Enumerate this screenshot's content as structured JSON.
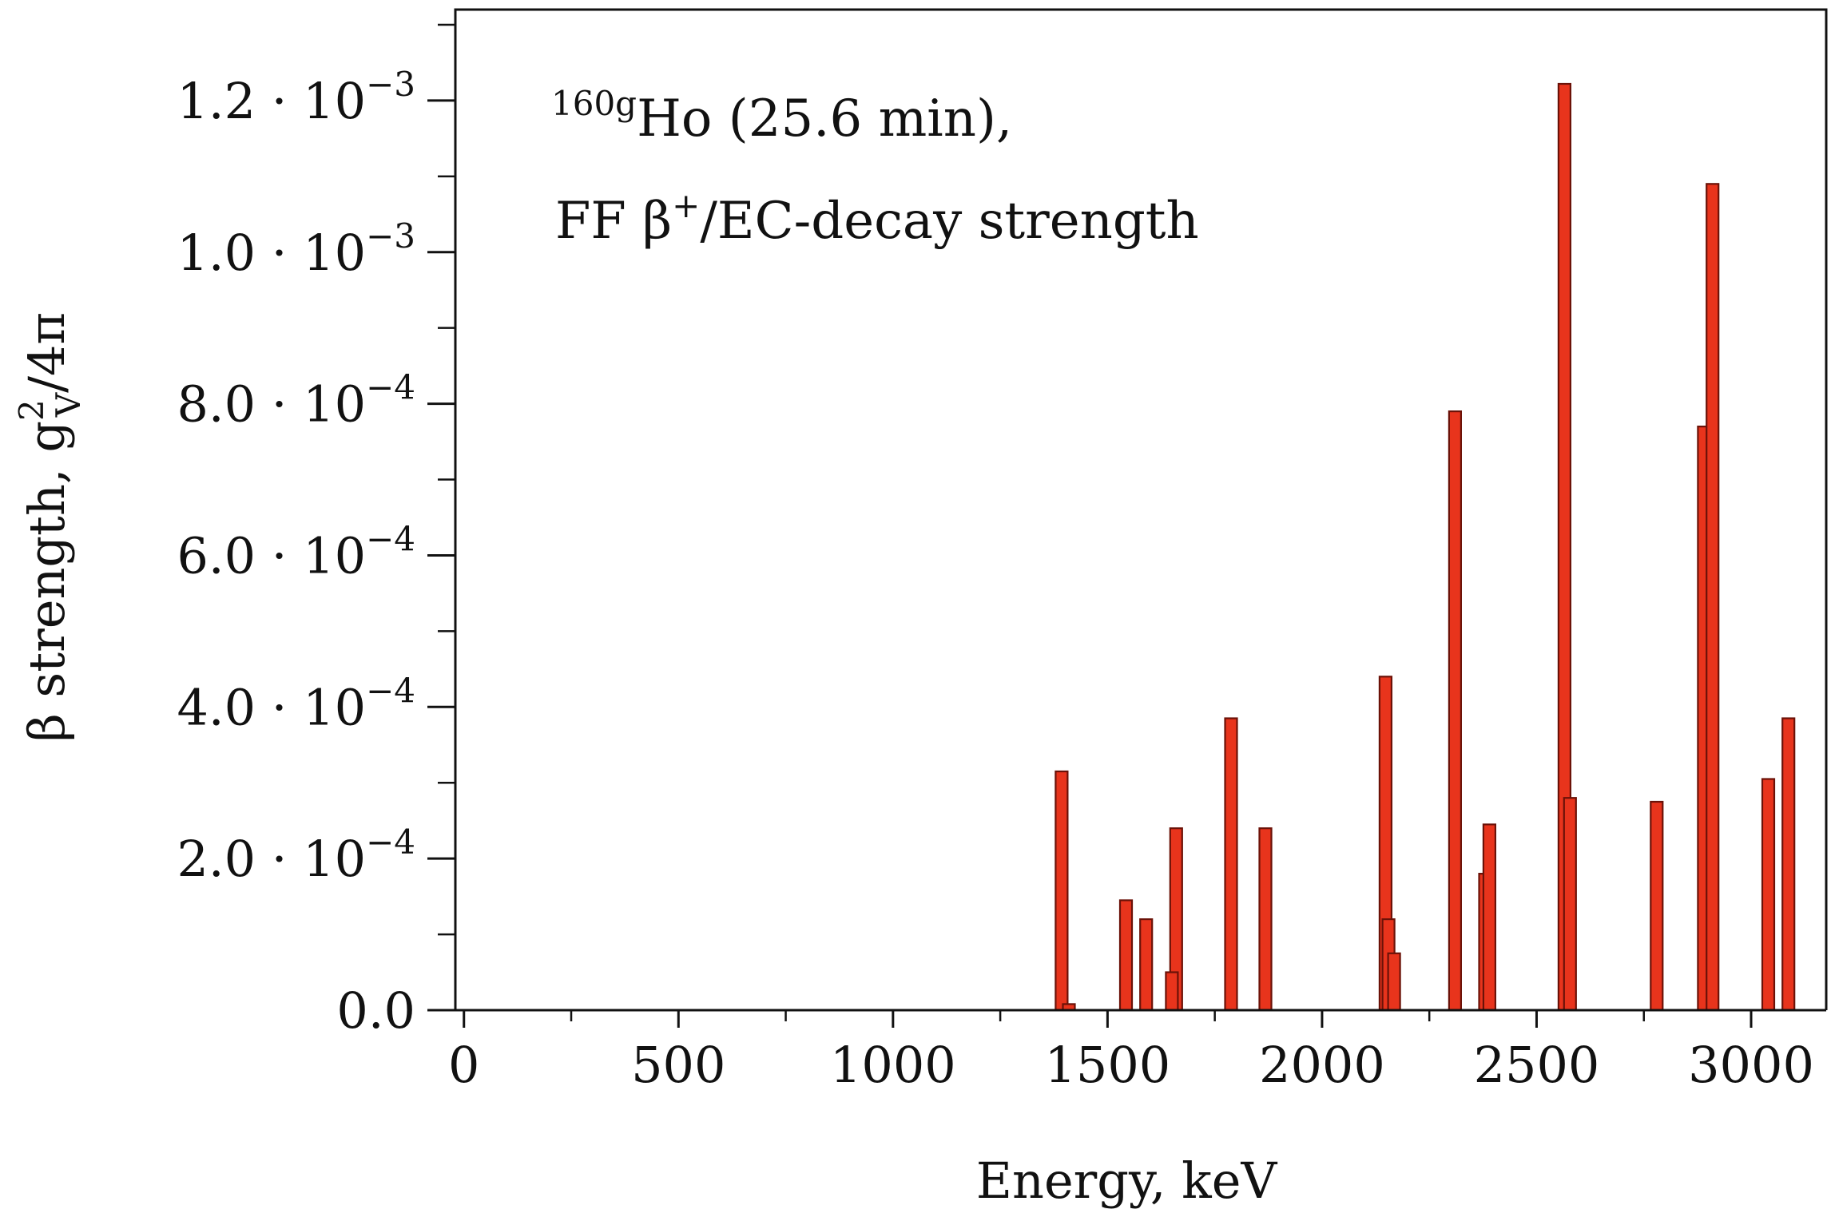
{
  "chart_data": {
    "type": "bar",
    "title": "",
    "annotation": {
      "line1": {
        "mass_sup": "160g",
        "nuclide": "Ho (25.6 min),",
        "text": "¹⁶⁰ᵍHo (25.6 min),"
      },
      "line2": {
        "prefix": "FF β",
        "charge_sup": "+",
        "suffix": "/EC-decay strength",
        "text": "FF β⁺/EC-decay strength"
      }
    },
    "xlabel": "Energy, keV",
    "ylabel": {
      "prefix": "β strength, g",
      "sup": "2",
      "sub": "V",
      "suffix": "/4π",
      "text": "β strength, g²ᵥ/4π"
    },
    "xlim": [
      -20,
      3175
    ],
    "ylim": [
      0,
      0.00132
    ],
    "xticks": [
      0,
      500,
      1000,
      1500,
      2000,
      2500,
      3000
    ],
    "xtick_labels": [
      "0",
      "500",
      "1000",
      "1500",
      "2000",
      "2500",
      "3000"
    ],
    "xminor_ticks": [
      250,
      750,
      1250,
      1750,
      2250,
      2750
    ],
    "yticks": [
      0,
      0.0002,
      0.0004,
      0.0006,
      0.0008,
      0.001,
      0.0012
    ],
    "ytick_labels": [
      {
        "mantissa": "0.0",
        "exp": ""
      },
      {
        "mantissa": "2.0 · 10",
        "exp": "−4"
      },
      {
        "mantissa": "4.0 · 10",
        "exp": "−4"
      },
      {
        "mantissa": "6.0 · 10",
        "exp": "−4"
      },
      {
        "mantissa": "8.0 · 10",
        "exp": "−4"
      },
      {
        "mantissa": "1.0 · 10",
        "exp": "−3"
      },
      {
        "mantissa": "1.2 · 10",
        "exp": "−3"
      }
    ],
    "yminor_step": 0.0001,
    "bar_width": 28,
    "grid": false,
    "legend": "none",
    "colors": {
      "bar_fill": "#e8341c",
      "bar_edge": "#6b1208",
      "axis": "#111111"
    },
    "bars": [
      {
        "x": 1393,
        "y": 0.000315
      },
      {
        "x": 1410,
        "y": 8e-06
      },
      {
        "x": 1543,
        "y": 0.000145
      },
      {
        "x": 1590,
        "y": 0.00012
      },
      {
        "x": 1660,
        "y": 0.00024
      },
      {
        "x": 1650,
        "y": 5e-05
      },
      {
        "x": 1788,
        "y": 0.000385
      },
      {
        "x": 1868,
        "y": 0.00024
      },
      {
        "x": 2148,
        "y": 0.00044
      },
      {
        "x": 2155,
        "y": 0.00012
      },
      {
        "x": 2168,
        "y": 7.5e-05
      },
      {
        "x": 2310,
        "y": 0.00079
      },
      {
        "x": 2380,
        "y": 0.00018
      },
      {
        "x": 2390,
        "y": 0.000245
      },
      {
        "x": 2565,
        "y": 0.001222
      },
      {
        "x": 2578,
        "y": 0.00028
      },
      {
        "x": 2780,
        "y": 0.000275
      },
      {
        "x": 2890,
        "y": 0.00077
      },
      {
        "x": 2910,
        "y": 0.00109
      },
      {
        "x": 3040,
        "y": 0.000305
      },
      {
        "x": 3087,
        "y": 0.000385
      }
    ]
  }
}
